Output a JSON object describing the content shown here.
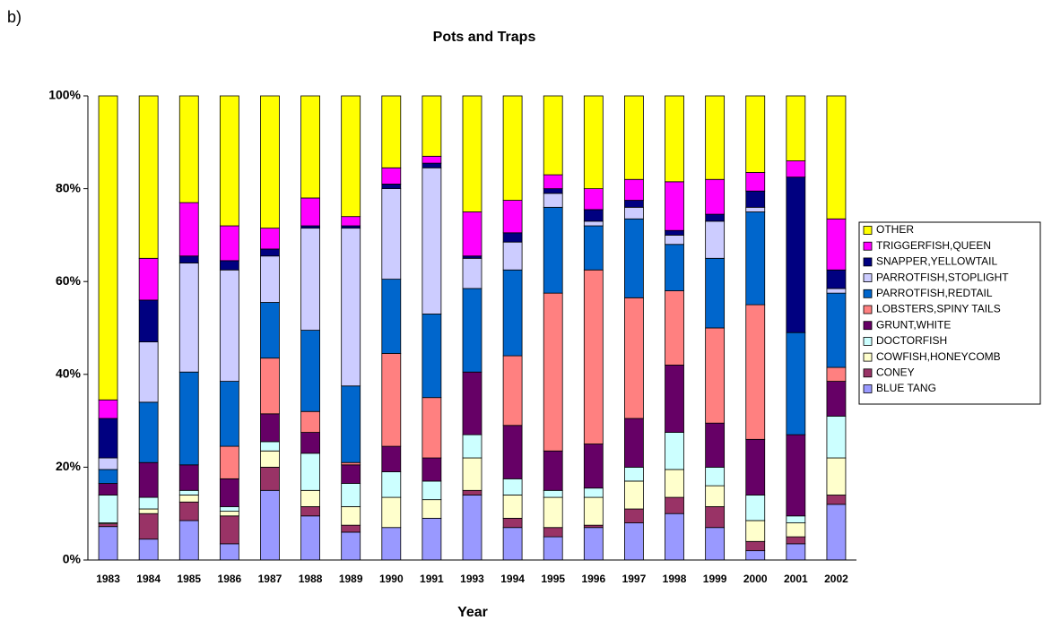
{
  "panel_label": "b)",
  "chart_data": {
    "type": "stacked_bar_100",
    "title": "Pots and Traps",
    "x_label": "Year",
    "categories": [
      "1983",
      "1984",
      "1985",
      "1986",
      "1987",
      "1988",
      "1989",
      "1990",
      "1991",
      "1993",
      "1994",
      "1995",
      "1996",
      "1997",
      "1998",
      "1999",
      "2000",
      "2001",
      "2002"
    ],
    "ylim": [
      0,
      100
    ],
    "yticks": [
      {
        "value": 0,
        "label": "0%"
      },
      {
        "value": 20,
        "label": "20%"
      },
      {
        "value": 40,
        "label": "40%"
      },
      {
        "value": 60,
        "label": "60%"
      },
      {
        "value": 80,
        "label": "80%"
      },
      {
        "value": 100,
        "label": "100%"
      }
    ],
    "legend": "right",
    "series": [
      {
        "name": "BLUE TANG",
        "color": "#9999ff",
        "values": [
          7.2,
          4.5,
          8.5,
          3.5,
          15,
          9.5,
          6,
          7,
          9,
          14,
          7,
          5,
          7,
          8,
          10,
          7,
          2,
          3.5,
          12
        ]
      },
      {
        "name": "CONEY",
        "color": "#993366",
        "values": [
          0.6,
          5.5,
          4,
          6,
          5,
          2,
          1.5,
          0,
          0,
          1,
          2,
          2,
          0.5,
          3,
          3.5,
          4.5,
          2,
          1.5,
          2
        ]
      },
      {
        "name": "COWFISH,HONEYCOMB",
        "color": "#ffffcc",
        "values": [
          0.2,
          1,
          1.5,
          1,
          3.5,
          3.5,
          4,
          6.5,
          4,
          7,
          5,
          6.5,
          6,
          6,
          6,
          4.5,
          4.5,
          3,
          8
        ]
      },
      {
        "name": "DOCTORFISH",
        "color": "#ccffff",
        "values": [
          6,
          2.5,
          1,
          1,
          2,
          8,
          5,
          5.5,
          4,
          5,
          3.5,
          1.5,
          2,
          3,
          8,
          4,
          5.5,
          1.5,
          9
        ]
      },
      {
        "name": "GRUNT,WHITE",
        "color": "#660066",
        "values": [
          2.5,
          7.5,
          5.5,
          6,
          6,
          4.5,
          4,
          5.5,
          5,
          13.5,
          11.5,
          8.5,
          9.5,
          10.5,
          14.5,
          9.5,
          12,
          17.5,
          7.5
        ]
      },
      {
        "name": "LOBSTERS,SPINY TAILS",
        "color": "#ff8080",
        "values": [
          0,
          0,
          0,
          7,
          12,
          4.5,
          0.5,
          20,
          13,
          0,
          15,
          34,
          37.5,
          26,
          16,
          20.5,
          29,
          0,
          3
        ]
      },
      {
        "name": "PARROTFISH,REDTAIL",
        "color": "#0066cc",
        "values": [
          3,
          13,
          20,
          14,
          12,
          17.5,
          16.5,
          16,
          18,
          18,
          18.5,
          18.5,
          9.5,
          17,
          10,
          15,
          20,
          22,
          16
        ]
      },
      {
        "name": "PARROTFISH,STOPLIGHT",
        "color": "#ccccff",
        "values": [
          2.5,
          13,
          23.5,
          24,
          10,
          22,
          34,
          19.5,
          31.5,
          6.5,
          6,
          3,
          1,
          2.5,
          2,
          8,
          1,
          0,
          1
        ]
      },
      {
        "name": "SNAPPER,YELLOWTAIL",
        "color": "#000080",
        "values": [
          8.5,
          9,
          1.5,
          2,
          1.5,
          0.5,
          0.5,
          1,
          1,
          0.5,
          2,
          1,
          2.5,
          1.5,
          1,
          1.5,
          3.5,
          33.5,
          4
        ]
      },
      {
        "name": "TRIGGERFISH,QUEEN",
        "color": "#ff00ff",
        "values": [
          4,
          9,
          11.5,
          7.5,
          4.5,
          6,
          2,
          3.5,
          1.5,
          9.5,
          7,
          3,
          4.5,
          4.5,
          10.5,
          7.5,
          4,
          3.5,
          11
        ]
      },
      {
        "name": "OTHER",
        "color": "#ffff00",
        "values": [
          65.5,
          35,
          23,
          28,
          28.5,
          22,
          26,
          15.5,
          13,
          25,
          22.5,
          17,
          20,
          18,
          18.5,
          18,
          16.5,
          14,
          26.5
        ]
      }
    ]
  }
}
